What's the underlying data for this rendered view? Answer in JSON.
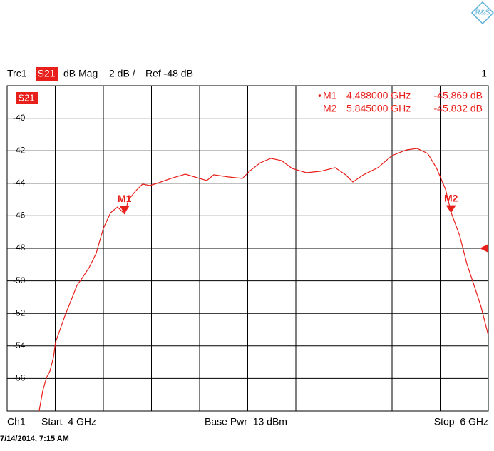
{
  "chart_data": {
    "type": "line",
    "header": {
      "trace": "Trc1",
      "param": "S21",
      "format": "dB Mag",
      "scale": "2 dB /",
      "ref": "Ref -48 dB",
      "channel_no": "1"
    },
    "trace_badge": "S21",
    "ylim": [
      -58,
      -38
    ],
    "yticks": [
      -56,
      -54,
      -52,
      -50,
      -48,
      -46,
      -44,
      -42,
      -40
    ],
    "xlim": [
      4,
      6
    ],
    "ref_level": -48,
    "grid": true,
    "x": [
      4.133,
      4.148,
      4.163,
      4.178,
      4.193,
      4.201,
      4.222,
      4.243,
      4.267,
      4.29,
      4.311,
      4.341,
      4.37,
      4.4,
      4.43,
      4.459,
      4.489,
      4.504,
      4.533,
      4.563,
      4.593,
      4.622,
      4.681,
      4.741,
      4.8,
      4.83,
      4.859,
      4.919,
      4.978,
      5.007,
      5.052,
      5.096,
      5.141,
      5.185,
      5.244,
      5.304,
      5.363,
      5.407,
      5.437,
      5.481,
      5.541,
      5.6,
      5.659,
      5.704,
      5.748,
      5.784,
      5.822,
      5.846,
      5.881,
      5.911,
      5.941,
      5.97,
      6.0
    ],
    "series": [
      {
        "name": "S21",
        "color": "#e8201c",
        "values": [
          -58.0,
          -56.77,
          -55.98,
          -55.54,
          -54.67,
          -53.79,
          -52.91,
          -52.04,
          -51.16,
          -50.28,
          -49.84,
          -49.18,
          -48.31,
          -46.77,
          -45.81,
          -45.46,
          -45.89,
          -45.02,
          -44.49,
          -44.05,
          -44.14,
          -44.01,
          -43.7,
          -43.44,
          -43.7,
          -43.83,
          -43.48,
          -43.61,
          -43.7,
          -43.26,
          -42.74,
          -42.47,
          -42.61,
          -43.09,
          -43.35,
          -43.26,
          -43.04,
          -43.48,
          -43.92,
          -43.48,
          -43.04,
          -42.3,
          -41.95,
          -41.86,
          -42.17,
          -43.04,
          -44.36,
          -45.81,
          -47.21,
          -48.96,
          -50.28,
          -51.6,
          -53.35
        ]
      }
    ],
    "markers": [
      {
        "name": "M1",
        "x": 4.488,
        "value": -45.869,
        "x_label": "4.488000 GHz",
        "value_label": "-45.869 dB"
      },
      {
        "name": "M2",
        "x": 5.845,
        "value": -45.832,
        "x_label": "5.845000 GHz",
        "value_label": "-45.832 dB"
      }
    ],
    "footer": {
      "channel": "Ch1",
      "start": "Start  4 GHz",
      "power": "Base Pwr  13 dBm",
      "stop": "Stop  6 GHz"
    },
    "timestamp": "7/14/2014, 7:15 AM"
  }
}
